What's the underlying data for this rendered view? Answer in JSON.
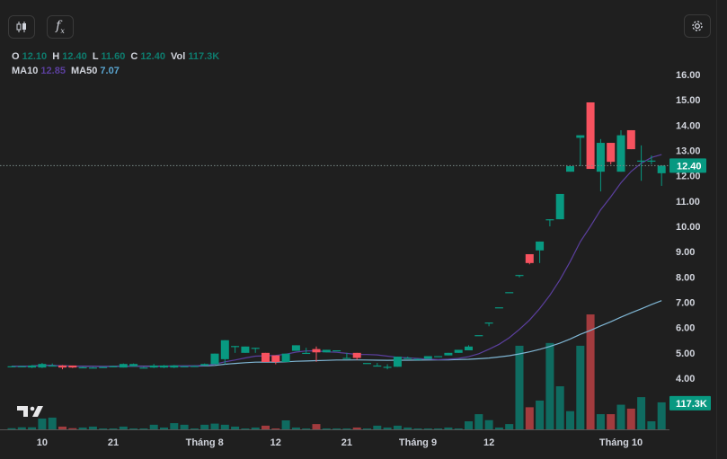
{
  "toolbar": {
    "candles_button": "candlestick-icon",
    "indicators_button": "fx-icon",
    "settings_button": "gear-icon"
  },
  "legend": {
    "o_label": "O",
    "o": "12.10",
    "h_label": "H",
    "h": "12.40",
    "l_label": "L",
    "l": "11.60",
    "c_label": "C",
    "c": "12.40",
    "vol_label": "Vol",
    "vol": "117.3K",
    "ma10_label": "MA10",
    "ma10": "12.85",
    "ma50_label": "MA50",
    "ma50": "7.07"
  },
  "colors": {
    "up": "#089981",
    "down": "#f7525f",
    "vol_up": "#0f6b60",
    "vol_down": "#a23b3e",
    "ma10": "#5b3f9e",
    "ma50": "#7fb6d4",
    "bg": "#1f1f1f"
  },
  "chart_data": {
    "type": "candlestick",
    "price_axis": {
      "ticks": [
        "16.00",
        "15.00",
        "14.00",
        "13.00",
        "12.00",
        "11.00",
        "10.00",
        "9.00",
        "8.00",
        "7.00",
        "6.00",
        "5.00",
        "4.00"
      ],
      "range": [
        4,
        16
      ]
    },
    "time_axis": [
      {
        "label": "10",
        "index": 3
      },
      {
        "label": "21",
        "index": 10
      },
      {
        "label": "Tháng 8",
        "index": 19
      },
      {
        "label": "12",
        "index": 26
      },
      {
        "label": "21",
        "index": 33
      },
      {
        "label": "Tháng 9",
        "index": 40
      },
      {
        "label": "12",
        "index": 47
      },
      {
        "label": "Tháng 10",
        "index": 60
      }
    ],
    "last_price_label": "12.40",
    "last_volume_label": "117.3K",
    "candles": [
      [
        4.46,
        4.48,
        4.44,
        4.47,
        5
      ],
      [
        4.46,
        4.48,
        4.44,
        4.47,
        9
      ],
      [
        4.42,
        4.52,
        4.4,
        4.5,
        9
      ],
      [
        4.42,
        4.6,
        4.4,
        4.56,
        47
      ],
      [
        4.5,
        4.58,
        4.48,
        4.5,
        51
      ],
      [
        4.5,
        4.52,
        4.35,
        4.42,
        12
      ],
      [
        4.5,
        4.5,
        4.4,
        4.42,
        5
      ],
      [
        4.43,
        4.45,
        4.41,
        4.43,
        8
      ],
      [
        4.42,
        4.44,
        4.4,
        4.42,
        12
      ],
      [
        4.44,
        4.46,
        4.42,
        4.44,
        4
      ],
      [
        4.47,
        4.49,
        4.45,
        4.47,
        4
      ],
      [
        4.42,
        4.58,
        4.42,
        4.56,
        12
      ],
      [
        4.47,
        4.58,
        4.45,
        4.56,
        4
      ],
      [
        4.42,
        4.44,
        4.4,
        4.42,
        4
      ],
      [
        4.42,
        4.56,
        4.4,
        4.5,
        20
      ],
      [
        4.42,
        4.52,
        4.4,
        4.5,
        8
      ],
      [
        4.42,
        4.52,
        4.4,
        4.5,
        27
      ],
      [
        4.47,
        4.49,
        4.45,
        4.47,
        20
      ],
      [
        4.47,
        4.5,
        4.45,
        4.48,
        4
      ],
      [
        4.5,
        4.58,
        4.48,
        4.56,
        20
      ],
      [
        4.55,
        4.97,
        4.55,
        4.97,
        25
      ],
      [
        4.75,
        5.5,
        4.55,
        5.5,
        20
      ],
      [
        5.27,
        5.27,
        5.0,
        5.27,
        12
      ],
      [
        5.0,
        5.25,
        5.0,
        5.25,
        4
      ],
      [
        5.2,
        5.2,
        5.0,
        5.2,
        8
      ],
      [
        5.0,
        5.0,
        4.64,
        4.64,
        16
      ],
      [
        4.9,
        4.9,
        4.55,
        4.64,
        4
      ],
      [
        4.64,
        4.97,
        4.64,
        4.97,
        39
      ],
      [
        5.08,
        5.3,
        5.08,
        5.3,
        8
      ],
      [
        5.0,
        5.2,
        5.0,
        5.0,
        4
      ],
      [
        5.15,
        5.25,
        4.65,
        5.02,
        23
      ],
      [
        5.02,
        5.12,
        5.02,
        5.12,
        4
      ],
      [
        5.1,
        5.1,
        5.1,
        5.1,
        4
      ],
      [
        4.8,
        5.0,
        4.8,
        4.8,
        4
      ],
      [
        5.0,
        5.0,
        4.72,
        4.8,
        8
      ],
      [
        4.6,
        4.6,
        4.6,
        4.6,
        4
      ],
      [
        4.5,
        4.6,
        4.5,
        4.5,
        16
      ],
      [
        4.45,
        4.55,
        4.35,
        4.45,
        8
      ],
      [
        4.45,
        4.85,
        4.45,
        4.85,
        16
      ],
      [
        4.8,
        4.85,
        4.8,
        4.8,
        8
      ],
      [
        4.76,
        4.78,
        4.74,
        4.76,
        4
      ],
      [
        4.76,
        4.87,
        4.76,
        4.87,
        4
      ],
      [
        4.87,
        4.87,
        4.87,
        4.87,
        4
      ],
      [
        4.9,
        5.0,
        4.9,
        5.0,
        8
      ],
      [
        5.0,
        5.12,
        5.0,
        5.12,
        4
      ],
      [
        5.1,
        5.3,
        5.1,
        5.25,
        35
      ],
      [
        5.7,
        5.7,
        5.7,
        5.7,
        66
      ],
      [
        6.2,
        6.2,
        6.05,
        6.2,
        40
      ],
      [
        6.8,
        6.8,
        6.8,
        6.8,
        8
      ],
      [
        7.4,
        7.4,
        7.4,
        7.4,
        23
      ],
      [
        8.08,
        8.08,
        7.98,
        8.08,
        363
      ],
      [
        8.9,
        8.9,
        8.5,
        8.55,
        96
      ],
      [
        9.05,
        9.4,
        8.55,
        9.4,
        125
      ],
      [
        10.28,
        10.28,
        10.0,
        10.28,
        375
      ],
      [
        10.28,
        11.28,
        10.28,
        11.28,
        187
      ],
      [
        12.16,
        12.38,
        12.16,
        12.38,
        79
      ],
      [
        13.5,
        13.6,
        12.38,
        13.6,
        363
      ],
      [
        14.9,
        14.9,
        12.27,
        12.27,
        499
      ],
      [
        12.16,
        13.45,
        11.38,
        13.3,
        66
      ],
      [
        13.3,
        13.3,
        12.45,
        12.55,
        66
      ],
      [
        12.16,
        13.8,
        12.16,
        13.6,
        107
      ],
      [
        13.8,
        13.8,
        13.05,
        13.05,
        90
      ],
      [
        12.6,
        13.2,
        11.8,
        12.6,
        140
      ],
      [
        12.6,
        12.8,
        12.45,
        12.6,
        35
      ],
      [
        12.1,
        12.4,
        11.6,
        12.4,
        117.3
      ]
    ],
    "candle_fields": [
      "open",
      "high",
      "low",
      "close",
      "volume_k"
    ],
    "indicators": [
      {
        "name": "MA10",
        "period": 10
      },
      {
        "name": "MA50",
        "period": 50
      }
    ]
  }
}
